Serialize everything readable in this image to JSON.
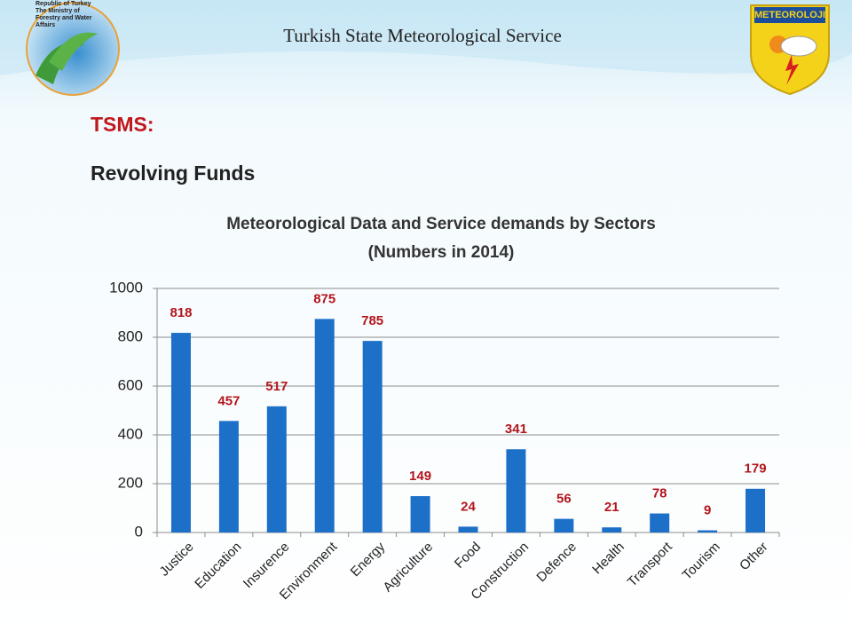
{
  "header": {
    "title": "Turkish State Meteorological Service",
    "left_logo_text": [
      "Republic of Turkey",
      "The Ministry of",
      "Forestry and Water",
      "Affairs"
    ],
    "right_logo_text": "METEOROLOJI"
  },
  "slide": {
    "heading": "TSMS:",
    "subheading": "Revolving Funds"
  },
  "chart_data": {
    "type": "bar",
    "title": "Meteorological Data and Service demands by Sectors",
    "subtitle": "(Numbers in 2014)",
    "categories": [
      "Justice",
      "Education",
      "Insurence",
      "Environment",
      "Energy",
      "Agriculture",
      "Food",
      "Construction",
      "Defence",
      "Health",
      "Transport",
      "Tourism",
      "Other"
    ],
    "values": [
      818,
      457,
      517,
      875,
      785,
      149,
      24,
      341,
      56,
      21,
      78,
      9,
      179
    ],
    "color": "#1c70c8",
    "label_color": "#b2151c",
    "ylim": [
      0,
      1000
    ],
    "yticks": [
      0,
      200,
      400,
      600,
      800,
      1000
    ],
    "grid": true
  }
}
